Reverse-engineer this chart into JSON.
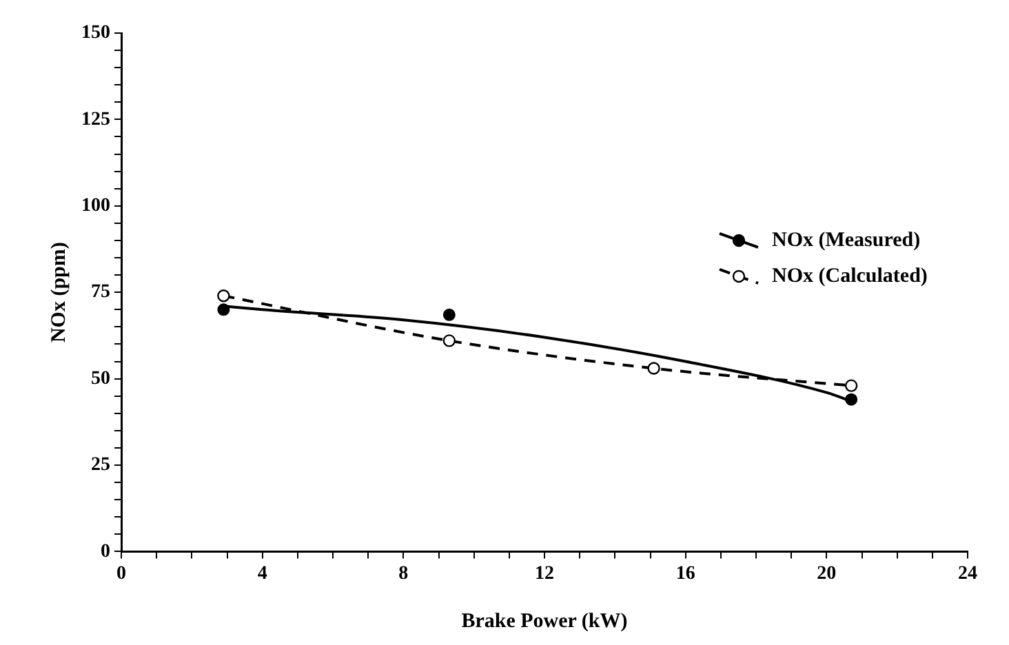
{
  "chart_data": {
    "type": "scatter",
    "xlabel": "Brake Power (kW)",
    "ylabel": "NOx (ppm)",
    "xlim": [
      0,
      24
    ],
    "xticks": [
      0,
      {
        "value": 1,
        "label": null
      },
      {
        "value": 2,
        "label": null
      },
      {
        "value": 3,
        "label": null
      },
      4,
      {
        "value": 5,
        "label": null
      },
      {
        "value": 6,
        "label": null
      },
      {
        "value": 7,
        "label": null
      },
      8,
      {
        "value": 9,
        "label": null
      },
      {
        "value": 10,
        "label": null
      },
      {
        "value": 11,
        "label": null
      },
      12,
      {
        "value": 13,
        "label": null
      },
      {
        "value": 14,
        "label": null
      },
      {
        "value": 15,
        "label": null
      },
      16,
      {
        "value": 17,
        "label": null
      },
      {
        "value": 18,
        "label": null
      },
      {
        "value": 19,
        "label": null
      },
      20,
      {
        "value": 21,
        "label": null
      },
      {
        "value": 22,
        "label": null
      },
      {
        "value": 23,
        "label": null
      },
      24
    ],
    "ylim": [
      0,
      150
    ],
    "yticks": [
      0,
      {
        "value": 5,
        "label": null
      },
      {
        "value": 10,
        "label": null
      },
      {
        "value": 15,
        "label": null
      },
      {
        "value": 20,
        "label": null
      },
      25,
      {
        "value": 30,
        "label": null
      },
      {
        "value": 35,
        "label": null
      },
      {
        "value": 40,
        "label": null
      },
      {
        "value": 45,
        "label": null
      },
      50,
      {
        "value": 55,
        "label": null
      },
      {
        "value": 60,
        "label": null
      },
      {
        "value": 65,
        "label": null
      },
      {
        "value": 70,
        "label": null
      },
      75,
      {
        "value": 80,
        "label": null
      },
      {
        "value": 85,
        "label": null
      },
      {
        "value": 90,
        "label": null
      },
      {
        "value": 95,
        "label": null
      },
      100,
      {
        "value": 105,
        "label": null
      },
      {
        "value": 110,
        "label": null
      },
      {
        "value": 115,
        "label": null
      },
      {
        "value": 120,
        "label": null
      },
      125,
      {
        "value": 130,
        "label": null
      },
      {
        "value": 135,
        "label": null
      },
      {
        "value": 140,
        "label": null
      },
      {
        "value": 145,
        "label": null
      },
      150
    ],
    "grid": false,
    "legend": "right",
    "marker": "circle",
    "series": [
      {
        "name": "NOx (Measured)",
        "color": "#000000",
        "x": [
          2.9,
          9.3,
          20.7
        ],
        "values": [
          70,
          68.5,
          44
        ]
      },
      {
        "type": "line",
        "color": "#000000",
        "line_style": "solid",
        "marker": "none",
        "x": [
          2.9,
          4,
          8,
          12,
          16,
          20,
          20.7
        ],
        "values": [
          71,
          70,
          67,
          62,
          55,
          46,
          43.5
        ]
      },
      {
        "name": "NOx (Calculated)",
        "type": "line",
        "color": "#000000",
        "line_style": "dashed",
        "x": [
          2.9,
          9.3,
          15.1,
          20.7
        ],
        "values": [
          74,
          61,
          53,
          48
        ]
      }
    ]
  }
}
